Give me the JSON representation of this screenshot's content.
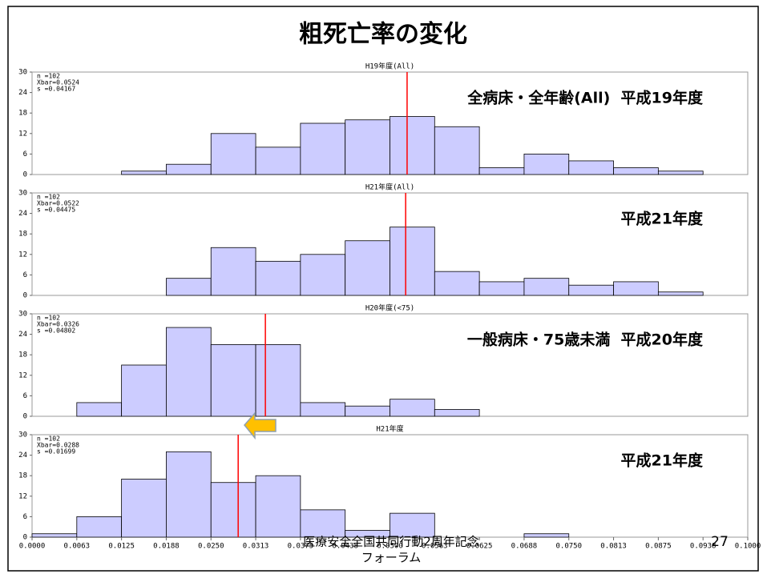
{
  "title": "粗死亡率の変化",
  "footer": [
    "医療安全全国共同行動2周年記念",
    "フォーラム"
  ],
  "page_number": "27",
  "chart_data": [
    {
      "type": "histogram",
      "title": "H19年度(All)",
      "annotation": "全病床・全年齢(All)  平成19年度",
      "stats": [
        "n =102",
        "Xbar=0.0524",
        "s =0.04167"
      ],
      "mean_line": 0.0524,
      "mean_color": "#ff0000",
      "color": "#ccccff",
      "bins": [
        0,
        0.00625,
        0.0125,
        0.01875,
        0.025,
        0.03125,
        0.0375,
        0.04375,
        0.05,
        0.05625,
        0.0625,
        0.06875,
        0.075,
        0.08125,
        0.0875,
        0.09375,
        0.1
      ],
      "values": [
        0,
        0,
        1,
        3,
        12,
        8,
        15,
        16,
        17,
        14,
        2,
        6,
        4,
        2,
        1,
        0
      ],
      "xlim": [
        0,
        0.1
      ],
      "ylim": [
        0,
        30
      ],
      "yticks": [
        0,
        6,
        12,
        18,
        24,
        30
      ]
    },
    {
      "type": "histogram",
      "title": "H21年度(All)",
      "annotation": "平成21年度",
      "stats": [
        "n =102",
        "Xbar=0.0522",
        "s =0.04475"
      ],
      "mean_line": 0.0522,
      "mean_color": "#ff0000",
      "color": "#ccccff",
      "bins": [
        0,
        0.00625,
        0.0125,
        0.01875,
        0.025,
        0.03125,
        0.0375,
        0.04375,
        0.05,
        0.05625,
        0.0625,
        0.06875,
        0.075,
        0.08125,
        0.0875,
        0.09375,
        0.1
      ],
      "values": [
        0,
        0,
        0,
        5,
        14,
        10,
        12,
        16,
        20,
        7,
        4,
        5,
        3,
        4,
        1,
        0
      ],
      "xlim": [
        0,
        0.1
      ],
      "ylim": [
        0,
        30
      ],
      "yticks": [
        0,
        6,
        12,
        18,
        24,
        30
      ]
    },
    {
      "type": "histogram",
      "title": "H20年度(<75)",
      "annotation": "一般病床・75歳未満  平成20年度",
      "stats": [
        "n =102",
        "Xbar=0.0326",
        "s =0.04802"
      ],
      "mean_line": 0.0326,
      "mean_color": "#ff0000",
      "color": "#ccccff",
      "bins": [
        0,
        0.00625,
        0.0125,
        0.01875,
        0.025,
        0.03125,
        0.0375,
        0.04375,
        0.05,
        0.05625,
        0.0625,
        0.06875,
        0.075,
        0.08125,
        0.0875,
        0.09375,
        0.1
      ],
      "values": [
        0,
        4,
        15,
        26,
        21,
        21,
        4,
        3,
        5,
        2,
        0,
        0,
        0,
        0,
        0,
        0
      ],
      "xlim": [
        0,
        0.1
      ],
      "ylim": [
        0,
        30
      ],
      "yticks": [
        0,
        6,
        12,
        18,
        24,
        30
      ]
    },
    {
      "type": "histogram",
      "title": "H21年度",
      "annotation": "平成21年度",
      "stats": [
        "n =102",
        "Xbar=0.0288",
        "s =0.01699"
      ],
      "mean_line": 0.0288,
      "mean_color": "#ff0000",
      "color": "#ccccff",
      "bins": [
        0,
        0.00625,
        0.0125,
        0.01875,
        0.025,
        0.03125,
        0.0375,
        0.04375,
        0.05,
        0.05625,
        0.0625,
        0.06875,
        0.075,
        0.08125,
        0.0875,
        0.09375,
        0.1
      ],
      "values": [
        1,
        6,
        17,
        25,
        16,
        18,
        8,
        2,
        7,
        0,
        0,
        1,
        0,
        0,
        0,
        0
      ],
      "xlim": [
        0,
        0.1
      ],
      "ylim": [
        0,
        30
      ],
      "yticks": [
        0,
        6,
        12,
        18,
        24,
        30
      ],
      "xticks": [
        {
          "value": 0,
          "label": "0.0000"
        },
        {
          "value": 0.00625,
          "label": "0.0063"
        },
        {
          "value": 0.0125,
          "label": "0.0125"
        },
        {
          "value": 0.01875,
          "label": "0.0188"
        },
        {
          "value": 0.025,
          "label": "0.0250"
        },
        {
          "value": 0.03125,
          "label": "0.0313"
        },
        {
          "value": 0.0375,
          "label": "0.0375"
        },
        {
          "value": 0.04375,
          "label": "0.0438"
        },
        {
          "value": 0.05,
          "label": "0.0500"
        },
        {
          "value": 0.05625,
          "label": "0.0563"
        },
        {
          "value": 0.0625,
          "label": "0.0625"
        },
        {
          "value": 0.06875,
          "label": "0.0688"
        },
        {
          "value": 0.075,
          "label": "0.0750"
        },
        {
          "value": 0.08125,
          "label": "0.0813"
        },
        {
          "value": 0.0875,
          "label": "0.0875"
        },
        {
          "value": 0.09375,
          "label": "0.0938"
        },
        {
          "value": 0.1,
          "label": "0.1000"
        }
      ]
    }
  ]
}
